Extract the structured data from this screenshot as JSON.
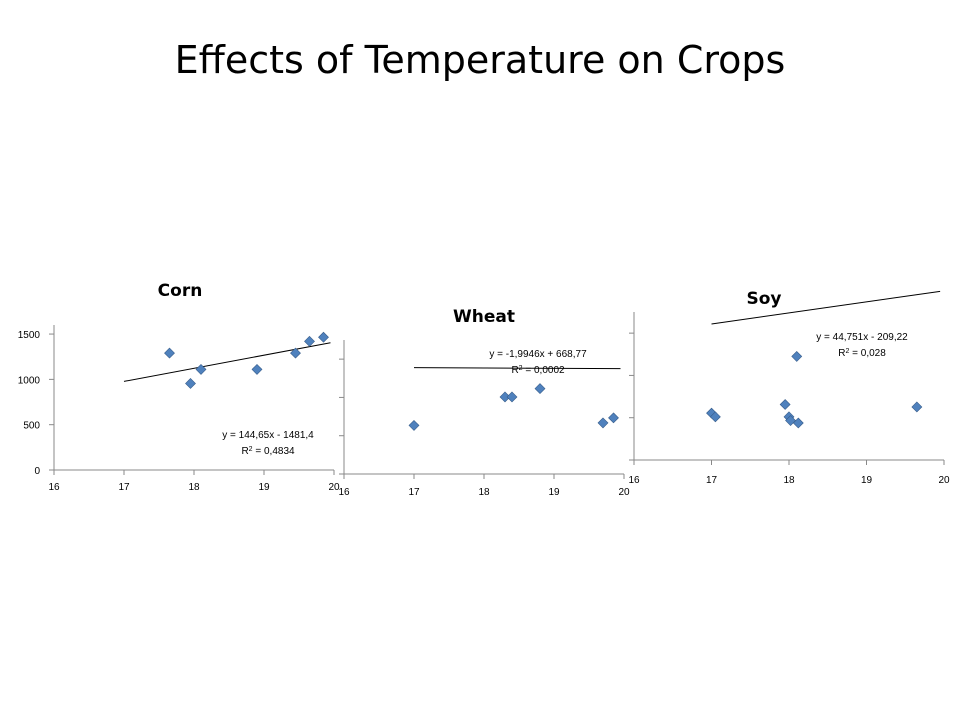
{
  "title": "Effects of Temperature on Crops",
  "colors": {
    "marker": "#4f81bd",
    "marker_edge": "#385d8a",
    "axis": "#898989",
    "trendline": "#000000"
  },
  "chart_data": [
    {
      "type": "scatter",
      "title": "Corn",
      "xlim": [
        16,
        20
      ],
      "ylim": [
        0,
        1600
      ],
      "x_ticks": [
        "16",
        "17",
        "18",
        "19",
        "20"
      ],
      "y_ticks": [
        "0",
        "500",
        "1000",
        "1500"
      ],
      "points": [
        [
          17.65,
          1290
        ],
        [
          17.95,
          955
        ],
        [
          18.1,
          1110
        ],
        [
          18.9,
          1110
        ],
        [
          19.45,
          1290
        ],
        [
          19.65,
          1420
        ],
        [
          19.85,
          1465
        ]
      ],
      "trendline": {
        "slope": 144.65,
        "intercept": -1481.4,
        "x_range": [
          17,
          19.95
        ]
      },
      "equation": "y = 144,65x - 1481,4",
      "r2_prefix": "R",
      "r2_value": " = 0,4834"
    },
    {
      "type": "scatter",
      "title": "Wheat",
      "xlim": [
        16,
        20
      ],
      "ylim": [
        0,
        800
      ],
      "x_ticks": [
        "16",
        "17",
        "18",
        "19",
        "20"
      ],
      "y_ticks": [],
      "points": [
        [
          17,
          290
        ],
        [
          18.3,
          460
        ],
        [
          18.4,
          460
        ],
        [
          18.8,
          510
        ],
        [
          19.7,
          305
        ],
        [
          19.85,
          335
        ]
      ],
      "trendline": {
        "slope": -1.9946,
        "intercept": 668.77,
        "x_range": [
          17,
          19.95
        ]
      },
      "equation": "y = -1,9946x + 668,77",
      "r2_prefix": "R",
      "r2_value": " = 0,0002"
    },
    {
      "type": "scatter",
      "title": "Soy",
      "xlim": [
        16,
        20
      ],
      "ylim": [
        0,
        600
      ],
      "x_ticks": [
        "16",
        "17",
        "18",
        "19",
        "20"
      ],
      "y_ticks": [],
      "points": [
        [
          17,
          190
        ],
        [
          17.05,
          175
        ],
        [
          17.95,
          225
        ],
        [
          18,
          175
        ],
        [
          18.02,
          160
        ],
        [
          18.1,
          420
        ],
        [
          18.12,
          150
        ],
        [
          19.65,
          215
        ]
      ],
      "trendline": {
        "slope": 44.751,
        "intercept": -209.22,
        "x_range": [
          17,
          19.95
        ]
      },
      "equation": "y = 44,751x - 209,22",
      "r2_prefix": "R",
      "r2_value": " = 0,028"
    }
  ]
}
